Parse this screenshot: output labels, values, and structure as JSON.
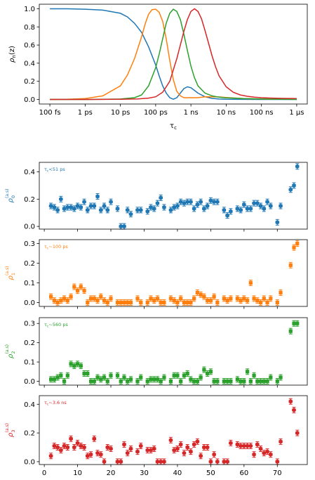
{
  "chart_data": [
    {
      "type": "line",
      "xlabel": "τ_c",
      "ylabel": "ρ_n(z)",
      "xscale": "log",
      "xlim": [
        -13.3,
        -5.7
      ],
      "ylim": [
        -0.05,
        1.05
      ],
      "xticks": [
        {
          "value": -13,
          "label": "100 fs"
        },
        {
          "value": -12,
          "label": "1 ps"
        },
        {
          "value": -11,
          "label": "10 ps"
        },
        {
          "value": -10,
          "label": "100 ps"
        },
        {
          "value": -9,
          "label": "1 ns"
        },
        {
          "value": -8,
          "label": "10 ns"
        },
        {
          "value": -7,
          "label": "100 ns"
        },
        {
          "value": -6,
          "label": "1 μs"
        }
      ],
      "yticks": [
        "0.0",
        "0.2",
        "0.4",
        "0.6",
        "0.8",
        "1.0"
      ],
      "series": [
        {
          "color": "#1f77b4",
          "x": [
            -13,
            -12.5,
            -12,
            -11.5,
            -11,
            -10.8,
            -10.6,
            -10.4,
            -10.2,
            -10,
            -9.9,
            -9.8,
            -9.7,
            -9.6,
            -9.5,
            -9.4,
            -9.3,
            -9.2,
            -9.1,
            -9,
            -8.9,
            -8.8,
            -8.6,
            -8.4,
            -8.2,
            -8,
            -7.5,
            -7,
            -6.5,
            -6
          ],
          "y": [
            1.0,
            1.0,
            0.995,
            0.985,
            0.95,
            0.91,
            0.84,
            0.74,
            0.58,
            0.38,
            0.26,
            0.15,
            0.07,
            0.02,
            0.003,
            0.02,
            0.07,
            0.12,
            0.14,
            0.13,
            0.1,
            0.07,
            0.03,
            0.012,
            0.005,
            0.002,
            0.001,
            0,
            0,
            0
          ]
        },
        {
          "color": "#ff7f0e",
          "x": [
            -13,
            -12.5,
            -12,
            -11.5,
            -11,
            -10.8,
            -10.6,
            -10.4,
            -10.3,
            -10.2,
            -10.1,
            -10,
            -9.9,
            -9.8,
            -9.7,
            -9.6,
            -9.5,
            -9.4,
            -9.3,
            -9.2,
            -9,
            -8.8,
            -8.6,
            -8.4,
            -8.2,
            -8,
            -7.5,
            -7,
            -6
          ],
          "y": [
            0.0,
            0.003,
            0.01,
            0.04,
            0.15,
            0.27,
            0.45,
            0.69,
            0.83,
            0.94,
            0.99,
            0.995,
            0.96,
            0.86,
            0.67,
            0.43,
            0.22,
            0.09,
            0.04,
            0.02,
            0.02,
            0.02,
            0.03,
            0.03,
            0.028,
            0.022,
            0.01,
            0.005,
            0.002
          ]
        },
        {
          "color": "#2ca02c",
          "x": [
            -13,
            -12,
            -11.5,
            -11,
            -10.6,
            -10.4,
            -10.2,
            -10,
            -9.9,
            -9.8,
            -9.7,
            -9.6,
            -9.5,
            -9.4,
            -9.3,
            -9.2,
            -9.1,
            -9,
            -8.9,
            -8.8,
            -8.6,
            -8.4,
            -8.2,
            -8,
            -7.5,
            -7,
            -6.5,
            -6
          ],
          "y": [
            0,
            0,
            0.002,
            0.005,
            0.02,
            0.05,
            0.15,
            0.35,
            0.5,
            0.67,
            0.84,
            0.95,
            0.995,
            0.97,
            0.88,
            0.72,
            0.54,
            0.37,
            0.24,
            0.15,
            0.07,
            0.04,
            0.025,
            0.018,
            0.01,
            0.005,
            0.002,
            0.001
          ]
        },
        {
          "color": "#d62728",
          "x": [
            -13,
            -12,
            -11,
            -10.5,
            -10.2,
            -10,
            -9.8,
            -9.6,
            -9.4,
            -9.2,
            -9.1,
            -9,
            -8.9,
            -8.8,
            -8.7,
            -8.6,
            -8.5,
            -8.4,
            -8.3,
            -8.2,
            -8,
            -7.8,
            -7.6,
            -7.4,
            -7.2,
            -7,
            -6.7,
            -6.4,
            -6
          ],
          "y": [
            0,
            0,
            0.002,
            0.006,
            0.015,
            0.03,
            0.08,
            0.2,
            0.45,
            0.75,
            0.88,
            0.97,
            1.0,
            0.97,
            0.89,
            0.76,
            0.62,
            0.48,
            0.36,
            0.26,
            0.14,
            0.08,
            0.05,
            0.035,
            0.025,
            0.02,
            0.015,
            0.012,
            0.01
          ]
        }
      ]
    },
    {
      "type": "scatter",
      "annotation": "τ_c<51 ps",
      "ylabel_base": "ρ",
      "ylabel_sub": "0",
      "ylabel_sup": "(a.s)",
      "color": "#1f77b4",
      "marker": "hexagon",
      "ylim": [
        -0.02,
        0.47
      ],
      "yticks": [
        "0.0",
        "0.2",
        "0.4"
      ],
      "x": [
        2,
        3,
        4,
        5,
        6,
        7,
        8,
        9,
        10,
        11,
        12,
        13,
        14,
        15,
        16,
        17,
        18,
        19,
        20,
        22,
        23,
        24,
        25,
        26,
        28,
        29,
        31,
        32,
        33,
        34,
        35,
        36,
        38,
        39,
        40,
        41,
        42,
        43,
        44,
        45,
        46,
        47,
        48,
        49,
        50,
        51,
        52,
        54,
        55,
        56,
        58,
        59,
        60,
        61,
        62,
        63,
        64,
        65,
        66,
        67,
        68,
        70,
        71,
        74,
        75,
        76
      ],
      "y": [
        0.15,
        0.14,
        0.12,
        0.2,
        0.13,
        0.14,
        0.14,
        0.13,
        0.15,
        0.14,
        0.18,
        0.12,
        0.15,
        0.15,
        0.22,
        0.12,
        0.15,
        0.12,
        0.18,
        0.13,
        0.0,
        0.0,
        0.12,
        0.09,
        0.12,
        0.12,
        0.11,
        0.14,
        0.13,
        0.17,
        0.21,
        0.14,
        0.12,
        0.14,
        0.15,
        0.18,
        0.17,
        0.18,
        0.18,
        0.13,
        0.16,
        0.18,
        0.13,
        0.15,
        0.19,
        0.18,
        0.18,
        0.12,
        0.08,
        0.11,
        0.13,
        0.12,
        0.16,
        0.13,
        0.13,
        0.17,
        0.17,
        0.15,
        0.13,
        0.18,
        0.15,
        0.03,
        0.15,
        0.27,
        0.3,
        0.44
      ]
    },
    {
      "type": "scatter",
      "annotation": "τ_c~100 ps",
      "ylabel_base": "ρ",
      "ylabel_sub": "1",
      "ylabel_sup": "(a.s)",
      "color": "#ff7f0e",
      "marker": "square",
      "ylim": [
        -0.02,
        0.32
      ],
      "yticks": [
        "0.0",
        "0.1",
        "0.2",
        "0.3"
      ],
      "x": [
        2,
        3,
        4,
        5,
        6,
        7,
        8,
        9,
        10,
        11,
        12,
        13,
        14,
        15,
        16,
        17,
        18,
        19,
        20,
        22,
        23,
        24,
        25,
        26,
        28,
        29,
        31,
        32,
        33,
        34,
        35,
        36,
        38,
        39,
        40,
        41,
        42,
        43,
        44,
        45,
        46,
        47,
        48,
        49,
        50,
        51,
        52,
        54,
        55,
        56,
        58,
        59,
        60,
        61,
        62,
        63,
        64,
        65,
        66,
        67,
        68,
        70,
        71,
        74,
        75,
        76
      ],
      "y": [
        0.03,
        0.01,
        0.0,
        0.01,
        0.02,
        0.01,
        0.03,
        0.08,
        0.06,
        0.08,
        0.06,
        0.0,
        0.02,
        0.02,
        0.01,
        0.03,
        0.01,
        0.0,
        0.02,
        0.0,
        0.0,
        0.0,
        0.0,
        0.0,
        0.02,
        0.0,
        0.0,
        0.02,
        0.01,
        0.02,
        0.0,
        0.0,
        0.02,
        0.01,
        0.0,
        0.02,
        0.0,
        0.0,
        0.0,
        0.02,
        0.05,
        0.04,
        0.03,
        0.01,
        0.01,
        0.03,
        0.0,
        0.02,
        0.01,
        0.02,
        0.02,
        0.01,
        0.02,
        0.01,
        0.1,
        0.02,
        0.01,
        0.0,
        0.02,
        0.0,
        0.02,
        0.0,
        0.05,
        0.19,
        0.28,
        0.3
      ]
    },
    {
      "type": "scatter",
      "annotation": "τ_c~560 ps",
      "ylabel_base": "ρ",
      "ylabel_sub": "2",
      "ylabel_sup": "(a.s)",
      "color": "#2ca02c",
      "marker": "square",
      "ylim": [
        -0.02,
        0.33
      ],
      "yticks": [
        "0.0",
        "0.1",
        "0.2",
        "0.3"
      ],
      "x": [
        2,
        3,
        4,
        5,
        6,
        7,
        8,
        9,
        10,
        11,
        12,
        13,
        14,
        15,
        16,
        17,
        18,
        19,
        20,
        22,
        23,
        24,
        25,
        26,
        28,
        29,
        31,
        32,
        33,
        34,
        35,
        36,
        38,
        39,
        40,
        41,
        42,
        43,
        44,
        45,
        46,
        47,
        48,
        49,
        50,
        51,
        52,
        54,
        55,
        56,
        58,
        59,
        60,
        61,
        62,
        63,
        64,
        65,
        66,
        67,
        68,
        70,
        71,
        74,
        75,
        76
      ],
      "y": [
        0.01,
        0.01,
        0.02,
        0.03,
        0.0,
        0.03,
        0.09,
        0.08,
        0.09,
        0.08,
        0.04,
        0.04,
        0.0,
        0.0,
        0.02,
        0.01,
        0.02,
        0.0,
        0.03,
        0.03,
        0.0,
        0.02,
        0.0,
        0.01,
        0.0,
        0.02,
        0.0,
        0.01,
        0.01,
        0.01,
        0.0,
        0.02,
        0.0,
        0.03,
        0.03,
        0.0,
        0.03,
        0.04,
        0.01,
        0.0,
        0.0,
        0.02,
        0.06,
        0.04,
        0.05,
        0.0,
        0.0,
        0.0,
        0.0,
        0.0,
        0.01,
        0.0,
        0.0,
        0.05,
        0.0,
        0.03,
        0.0,
        0.0,
        0.0,
        0.0,
        0.02,
        0.0,
        0.02,
        0.26,
        0.3,
        0.3
      ]
    },
    {
      "type": "scatter",
      "annotation": "τ_c~3.6 ns",
      "ylabel_base": "ρ",
      "ylabel_sub": "3",
      "ylabel_sup": "(a.s)",
      "color": "#d62728",
      "marker": "hexagon",
      "ylim": [
        -0.02,
        0.46
      ],
      "xlim": [
        -1.5,
        79
      ],
      "yticks": [
        "0.0",
        "0.2",
        "0.4"
      ],
      "xticks": [
        "0",
        "10",
        "20",
        "30",
        "40",
        "50",
        "60",
        "70"
      ],
      "x": [
        2,
        3,
        4,
        5,
        6,
        7,
        8,
        9,
        10,
        11,
        12,
        13,
        14,
        15,
        16,
        17,
        18,
        19,
        20,
        22,
        23,
        24,
        25,
        26,
        28,
        29,
        31,
        32,
        33,
        34,
        35,
        36,
        38,
        39,
        40,
        41,
        42,
        43,
        44,
        45,
        46,
        47,
        48,
        49,
        50,
        51,
        52,
        54,
        55,
        56,
        58,
        59,
        60,
        61,
        62,
        63,
        64,
        65,
        66,
        67,
        68,
        70,
        71,
        74,
        75,
        76
      ],
      "y": [
        0.04,
        0.11,
        0.1,
        0.08,
        0.11,
        0.1,
        0.16,
        0.1,
        0.13,
        0.11,
        0.1,
        0.04,
        0.05,
        0.16,
        0.06,
        0.05,
        0.0,
        0.1,
        0.09,
        0.0,
        0.0,
        0.12,
        0.06,
        0.09,
        0.07,
        0.11,
        0.08,
        0.08,
        0.09,
        0.0,
        0.0,
        0.0,
        0.15,
        0.08,
        0.09,
        0.12,
        0.06,
        0.1,
        0.07,
        0.12,
        0.14,
        0.04,
        0.1,
        0.1,
        0.0,
        0.05,
        0.0,
        0.0,
        0.0,
        0.13,
        0.12,
        0.11,
        0.11,
        0.11,
        0.11,
        0.05,
        0.12,
        0.09,
        0.06,
        0.07,
        0.05,
        0.0,
        0.14,
        0.42,
        0.36,
        0.2
      ]
    }
  ]
}
